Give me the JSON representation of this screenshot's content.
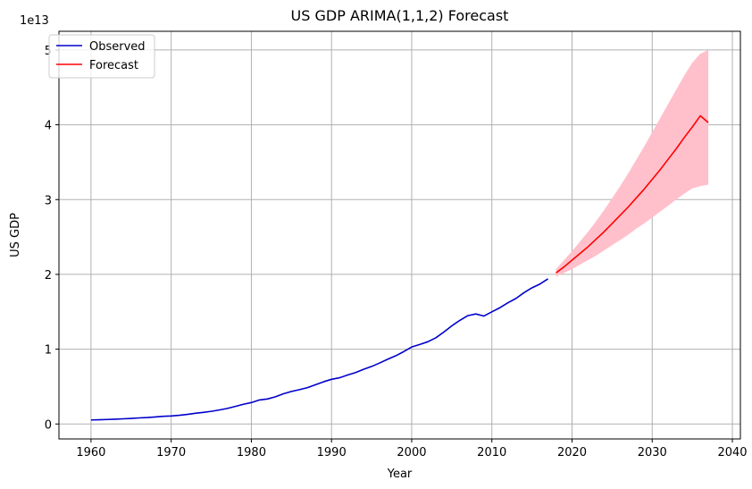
{
  "chart_data": {
    "type": "line",
    "title": "US GDP ARIMA(1,1,2) Forecast",
    "xlabel": "Year",
    "ylabel": "US GDP",
    "offset_label": "1e13",
    "xlim": [
      1956,
      2041
    ],
    "ylim": [
      -0.2,
      5.25
    ],
    "xticks": [
      1960,
      1970,
      1980,
      1990,
      2000,
      2010,
      2020,
      2030,
      2040
    ],
    "yticks": [
      0,
      1,
      2,
      3,
      4,
      5
    ],
    "grid": true,
    "legend_position": "top-left",
    "colors": {
      "observed": "#0000cc",
      "forecast": "#ff0000",
      "band": "#ffc0cb",
      "grid": "#b0b0b0"
    },
    "series": [
      {
        "name": "Observed",
        "x": [
          1960,
          1961,
          1962,
          1963,
          1964,
          1965,
          1966,
          1967,
          1968,
          1969,
          1970,
          1971,
          1972,
          1973,
          1974,
          1975,
          1976,
          1977,
          1978,
          1979,
          1980,
          1981,
          1982,
          1983,
          1984,
          1985,
          1986,
          1987,
          1988,
          1989,
          1990,
          1991,
          1992,
          1993,
          1994,
          1995,
          1996,
          1997,
          1998,
          1999,
          2000,
          2001,
          2002,
          2003,
          2004,
          2005,
          2006,
          2007,
          2008,
          2009,
          2010,
          2011,
          2012,
          2013,
          2014,
          2015,
          2016,
          2017
        ],
        "values": [
          0.054,
          0.056,
          0.06,
          0.064,
          0.069,
          0.074,
          0.081,
          0.086,
          0.094,
          0.102,
          0.107,
          0.116,
          0.128,
          0.143,
          0.155,
          0.169,
          0.187,
          0.208,
          0.235,
          0.263,
          0.286,
          0.321,
          0.334,
          0.363,
          0.404,
          0.435,
          0.459,
          0.486,
          0.525,
          0.564,
          0.597,
          0.618,
          0.654,
          0.688,
          0.731,
          0.769,
          0.815,
          0.865,
          0.911,
          0.967,
          1.029,
          1.063,
          1.099,
          1.151,
          1.228,
          1.312,
          1.385,
          1.448,
          1.471,
          1.443,
          1.499,
          1.554,
          1.62,
          1.678,
          1.755,
          1.82,
          1.871,
          1.94
        ]
      },
      {
        "name": "Forecast",
        "x": [
          2018,
          2019,
          2020,
          2021,
          2022,
          2023,
          2024,
          2025,
          2026,
          2027,
          2028,
          2029,
          2030,
          2031,
          2032,
          2033,
          2034,
          2035,
          2036,
          2037
        ],
        "values": [
          2.02,
          2.1,
          2.19,
          2.28,
          2.37,
          2.47,
          2.57,
          2.68,
          2.79,
          2.9,
          3.02,
          3.14,
          3.27,
          3.4,
          3.54,
          3.68,
          3.83,
          3.97,
          4.12,
          4.03
        ]
      }
    ],
    "confidence_band": {
      "x": [
        2018,
        2019,
        2020,
        2021,
        2022,
        2023,
        2024,
        2025,
        2026,
        2027,
        2028,
        2029,
        2030,
        2031,
        2032,
        2033,
        2034,
        2035,
        2036,
        2037
      ],
      "lower": [
        1.97,
        2.02,
        2.07,
        2.13,
        2.19,
        2.25,
        2.32,
        2.39,
        2.46,
        2.53,
        2.61,
        2.68,
        2.76,
        2.84,
        2.92,
        3.0,
        3.08,
        3.15,
        3.18,
        3.2
      ],
      "upper": [
        2.07,
        2.19,
        2.31,
        2.44,
        2.57,
        2.71,
        2.86,
        3.02,
        3.18,
        3.35,
        3.53,
        3.71,
        3.9,
        4.09,
        4.28,
        4.47,
        4.66,
        4.83,
        4.95,
        5.0
      ]
    }
  }
}
